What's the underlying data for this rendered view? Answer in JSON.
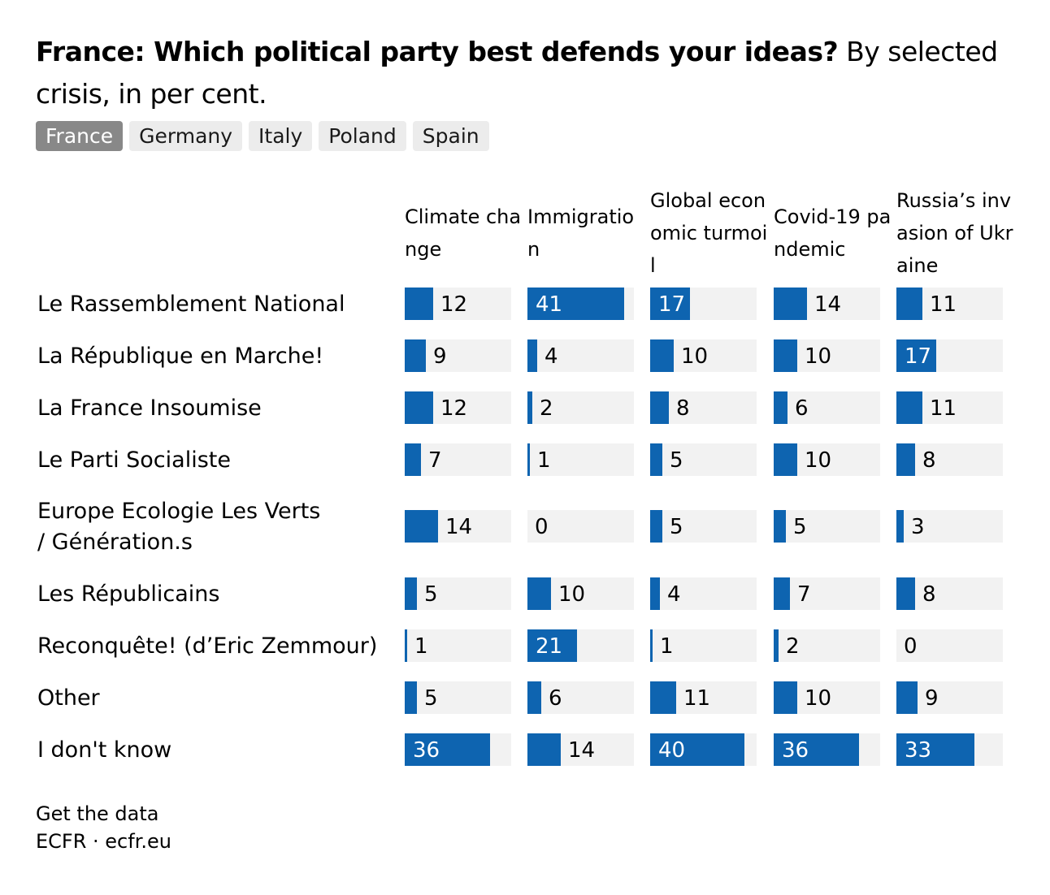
{
  "header": {
    "title_bold": "France: Which political party best defends your ideas?",
    "title_rest": " By selected crisis, in per cent."
  },
  "tabs": [
    {
      "label": "France",
      "active": true
    },
    {
      "label": "Germany",
      "active": false
    },
    {
      "label": "Italy",
      "active": false
    },
    {
      "label": "Poland",
      "active": false
    },
    {
      "label": "Spain",
      "active": false
    }
  ],
  "colors": {
    "bar": "#0e64b0",
    "track": "#f2f2f2",
    "active_tab": "#888888",
    "tab": "#ececec"
  },
  "chart_data": {
    "type": "bar",
    "title": "France: Which political party best defends your ideas? By selected crisis, in per cent.",
    "xlim": [
      0,
      45
    ],
    "columns": [
      "Climate change",
      "Immigration",
      "Global economic turmoil",
      "Covid-19 pandemic",
      "Russia’s invasion of Ukraine"
    ],
    "rows": [
      {
        "label": "Le Rassemblement National",
        "values": [
          12,
          41,
          17,
          14,
          11
        ]
      },
      {
        "label": "La République en Marche!",
        "values": [
          9,
          4,
          10,
          10,
          17
        ]
      },
      {
        "label": "La France Insoumise",
        "values": [
          12,
          2,
          8,
          6,
          11
        ]
      },
      {
        "label": "Le Parti Socialiste",
        "values": [
          7,
          1,
          5,
          10,
          8
        ]
      },
      {
        "label": "Europe Ecologie Les Verts / Génération.s",
        "values": [
          14,
          0,
          5,
          5,
          3
        ]
      },
      {
        "label": "Les Républicains",
        "values": [
          5,
          10,
          4,
          7,
          8
        ]
      },
      {
        "label": "Reconquête! (d’Eric Zemmour)",
        "values": [
          1,
          21,
          1,
          2,
          0
        ]
      },
      {
        "label": "Other",
        "values": [
          5,
          6,
          11,
          10,
          9
        ]
      },
      {
        "label": "I don't know",
        "values": [
          36,
          14,
          40,
          36,
          33
        ]
      }
    ]
  },
  "footer": {
    "link": "Get the data",
    "source": "ECFR · ecfr.eu"
  }
}
